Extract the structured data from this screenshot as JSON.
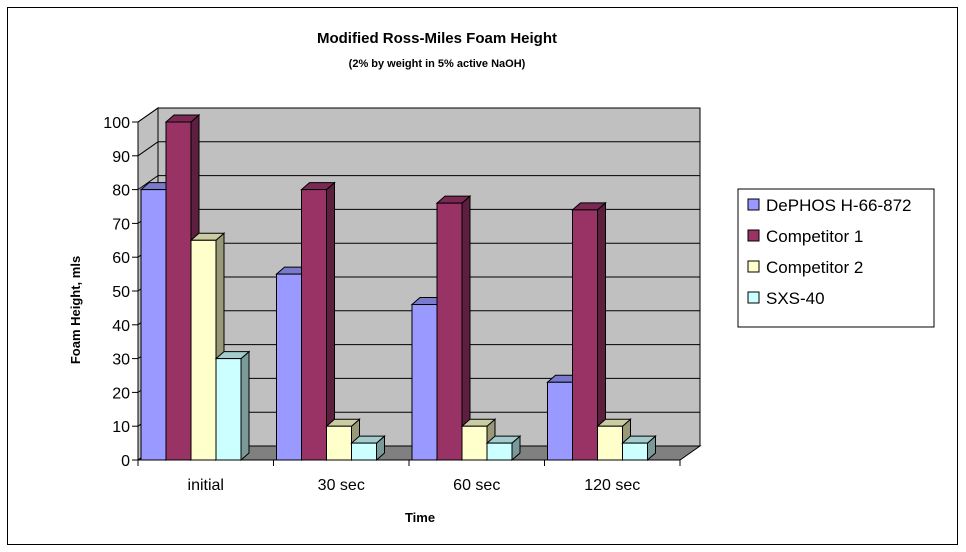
{
  "chart_data": {
    "type": "bar",
    "title": "Modified Ross-Miles Foam Height",
    "subtitle": "(2% by weight in 5% active NaOH)",
    "xlabel": "Time",
    "ylabel": "Foam Height, mls",
    "categories": [
      "initial",
      "30 sec",
      "60 sec",
      "120 sec"
    ],
    "ylim": [
      0,
      100
    ],
    "yticks": [
      "0",
      "10",
      "20",
      "30",
      "40",
      "50",
      "60",
      "70",
      "80",
      "90",
      "100"
    ],
    "grid": true,
    "legend_position": "right",
    "series": [
      {
        "name": "DePHOS H-66-872",
        "color": "#9999ff",
        "values": [
          80,
          55,
          46,
          23
        ]
      },
      {
        "name": "Competitor 1",
        "color": "#993366",
        "values": [
          100,
          80,
          76,
          74
        ]
      },
      {
        "name": "Competitor 2",
        "color": "#ffffcc",
        "values": [
          65,
          10,
          10,
          10
        ]
      },
      {
        "name": "SXS-40",
        "color": "#ccffff",
        "values": [
          30,
          5,
          5,
          5
        ]
      }
    ],
    "wall_color": "#c0c0c0",
    "floor_color": "#808080"
  }
}
